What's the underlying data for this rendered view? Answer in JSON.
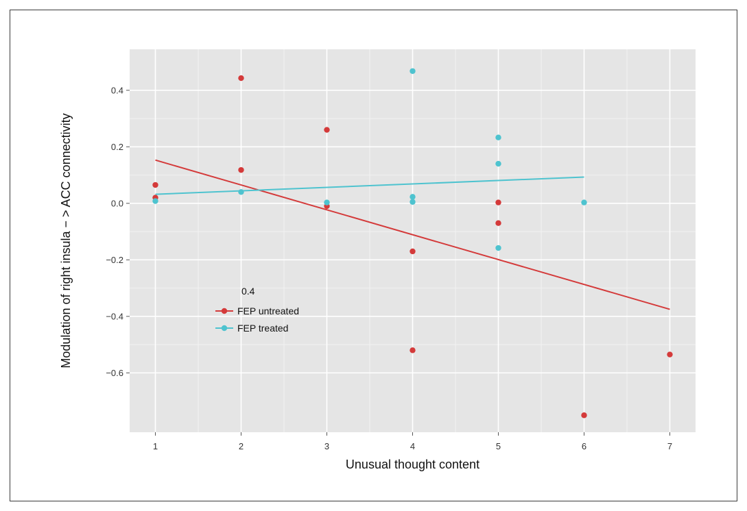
{
  "chart_data": {
    "type": "scatter",
    "title": "",
    "xlabel": "Unusual thought content",
    "ylabel": "Modulation of right insula − > ACC connectivity",
    "xlim": [
      0.7,
      7.3
    ],
    "ylim": [
      -0.81,
      0.545
    ],
    "x_ticks": [
      1,
      2,
      3,
      4,
      5,
      6,
      7
    ],
    "y_ticks": [
      0.4,
      0.2,
      0.0,
      -0.2,
      -0.4,
      -0.6
    ],
    "y_tick_labels": [
      "0.4",
      "0.2",
      "0.0",
      "−0.2",
      "−0.4",
      "−0.6"
    ],
    "grid": true,
    "legend": {
      "title": "0.4",
      "placement": "left-middle",
      "entries": [
        "FEP untreated",
        "FEP treated"
      ]
    },
    "series": [
      {
        "name": "FEP untreated",
        "color": "#d43a3a",
        "points": [
          [
            1,
            0.065
          ],
          [
            1,
            0.02
          ],
          [
            2,
            0.443
          ],
          [
            2,
            0.118
          ],
          [
            3,
            0.26
          ],
          [
            3,
            -0.01
          ],
          [
            4,
            -0.17
          ],
          [
            4,
            -0.52
          ],
          [
            5,
            0.003
          ],
          [
            5,
            -0.07
          ],
          [
            6,
            -0.75
          ],
          [
            7,
            -0.535
          ]
        ],
        "fit_line": {
          "x": [
            1,
            7
          ],
          "y": [
            0.153,
            -0.375
          ]
        }
      },
      {
        "name": "FEP treated",
        "color": "#4ec3cf",
        "points": [
          [
            1,
            0.008
          ],
          [
            2,
            0.04
          ],
          [
            3,
            0.003
          ],
          [
            4,
            0.468
          ],
          [
            4,
            0.023
          ],
          [
            4,
            0.005
          ],
          [
            5,
            0.233
          ],
          [
            5,
            0.14
          ],
          [
            5,
            -0.158
          ],
          [
            6,
            0.003
          ]
        ],
        "fit_line": {
          "x": [
            1,
            6
          ],
          "y": [
            0.032,
            0.093
          ]
        }
      }
    ]
  }
}
